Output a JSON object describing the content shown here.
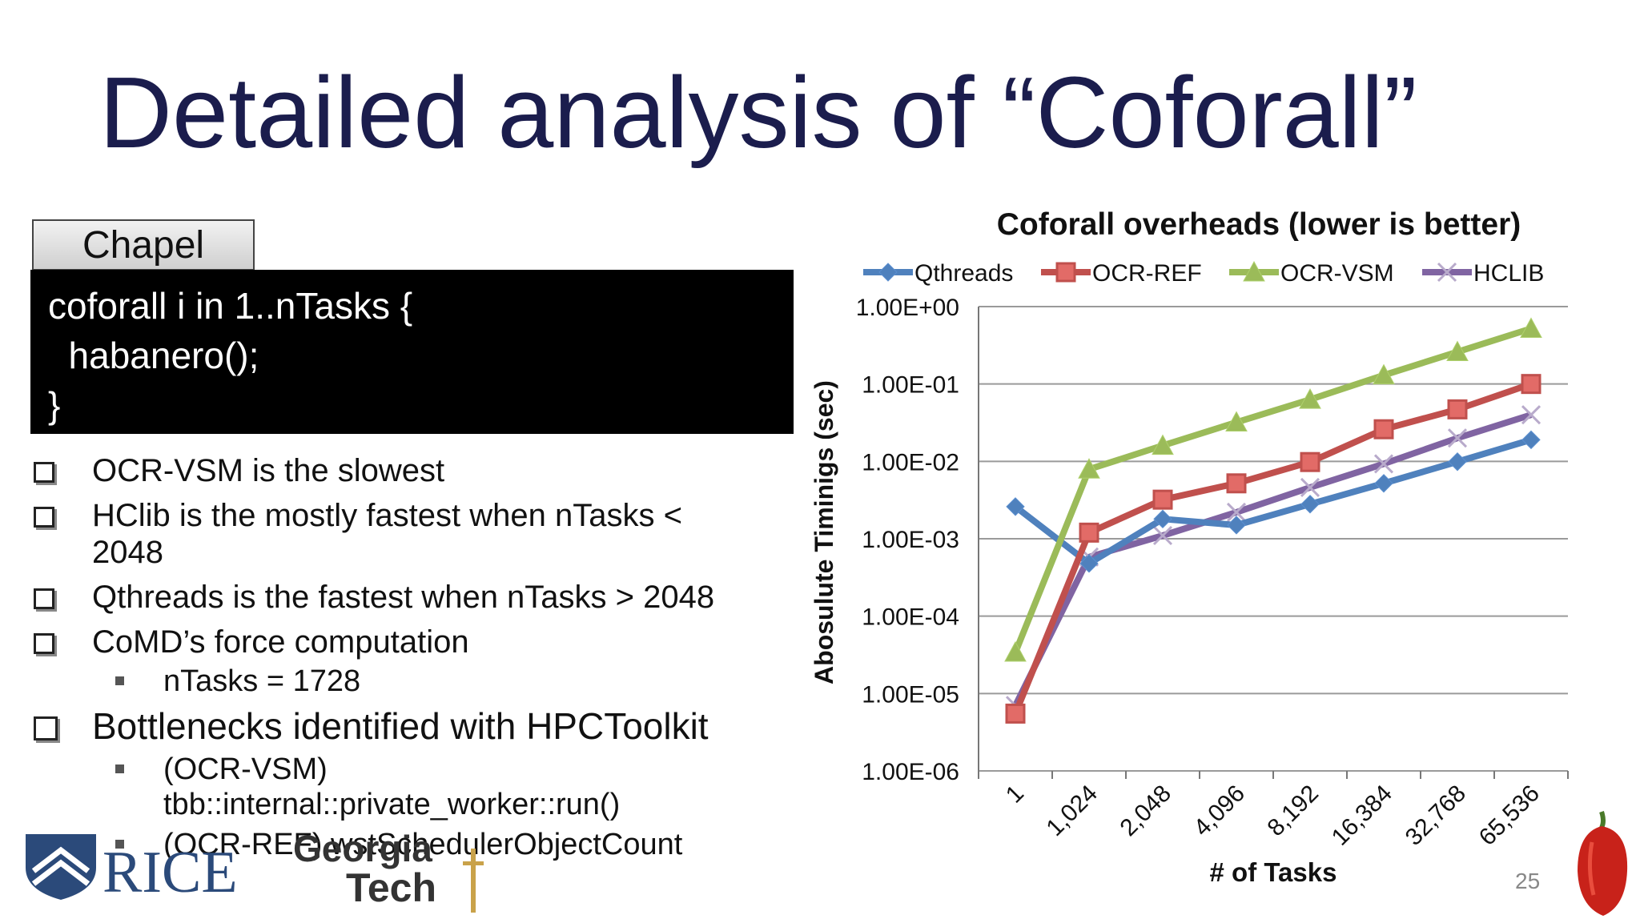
{
  "slide": {
    "title": "Detailed analysis of “Coforall”",
    "page_number": "25"
  },
  "code_panel": {
    "language_tab": "Chapel",
    "lines": [
      "coforall i in 1..nTasks {",
      "  habanero();",
      "}"
    ]
  },
  "bullets": [
    {
      "text": "OCR-VSM is the slowest"
    },
    {
      "text": "HClib is the mostly fastest when nTasks < 2048"
    },
    {
      "text": "Qthreads is the fastest when nTasks > 2048"
    },
    {
      "text": "CoMD’s force computation"
    },
    {
      "sub": "nTasks = 1728"
    },
    {
      "text": "Bottlenecks identified with HPCToolkit"
    },
    {
      "sub": "(OCR-VSM) tbb::internal::private_worker::run()"
    },
    {
      "sub": "(OCR-REF) wstSchedulerObjectCount"
    }
  ],
  "logos": {
    "rice": "RICE",
    "gt_line1": "Georgia",
    "gt_line2": "Tech"
  },
  "chart_data": {
    "type": "line",
    "title": "Coforall overheads (lower is better)",
    "xlabel": "# of Tasks",
    "ylabel": "Abosulute Timinigs (sec)",
    "y_scale": "log",
    "ylim": [
      1e-06,
      1
    ],
    "y_tick_labels": [
      "1.00E+00",
      "1.00E-01",
      "1.00E-02",
      "1.00E-03",
      "1.00E-04",
      "1.00E-05",
      "1.00E-06"
    ],
    "categories": [
      "1",
      "1,024",
      "2,048",
      "4,096",
      "8,192",
      "16,384",
      "32,768",
      "65,536"
    ],
    "legend_position": "top",
    "grid": true,
    "series": [
      {
        "name": "Qthreads",
        "color": "#4f81bd",
        "marker": "diamond",
        "values": [
          0.0026,
          0.00048,
          0.0018,
          0.0015,
          0.0028,
          0.0052,
          0.0099,
          0.019
        ]
      },
      {
        "name": "OCR-REF",
        "color": "#c0504d",
        "marker": "square",
        "values": [
          5.5e-06,
          0.0012,
          0.0032,
          0.0052,
          0.0098,
          0.026,
          0.047,
          0.1
        ]
      },
      {
        "name": "OCR-VSM",
        "color": "#9bbb59",
        "marker": "triangle",
        "values": [
          3.4e-05,
          0.0079,
          0.016,
          0.032,
          0.063,
          0.13,
          0.26,
          0.52
        ]
      },
      {
        "name": "HCLIB",
        "color": "#8064a2",
        "marker": "x",
        "values": [
          7e-06,
          0.00058,
          0.0011,
          0.0022,
          0.0046,
          0.0093,
          0.02,
          0.04
        ]
      }
    ]
  }
}
